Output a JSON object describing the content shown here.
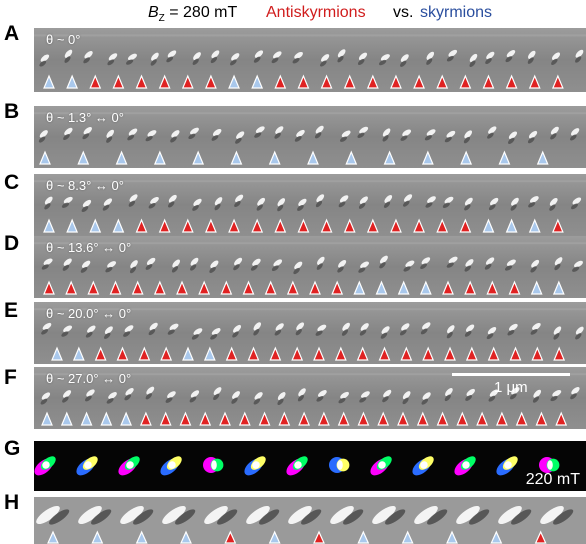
{
  "header": {
    "bz_label": "B",
    "bz_sub": "Z",
    "bz_value": " = 280 mT",
    "antiskyrmions": "Antiskyrmions",
    "vs": "vs.",
    "skyrmions": "skyrmions"
  },
  "colors": {
    "antiskyrmion": "#d01c1c",
    "skyrmion": "#2a4e9e",
    "anti_fill": "#e02222",
    "sky_fill": "#a9c8ec"
  },
  "panels": [
    {
      "label": "A",
      "angle": "θ ~ 0°",
      "markers": [
        "s",
        "s",
        "a",
        "a",
        "a",
        "a",
        "a",
        "a",
        "s",
        "s",
        "a",
        "a",
        "a",
        "a",
        "a",
        "a",
        "a",
        "a",
        "a",
        "a",
        "a",
        "a",
        "a"
      ]
    },
    {
      "label": "B",
      "angle": "θ ~ 1.3° ↔ 0°",
      "markers": [
        "s",
        "s",
        "s",
        "s",
        "s",
        "s",
        "s",
        "s",
        "s",
        "s",
        "s",
        "s",
        "s",
        "s"
      ]
    },
    {
      "label": "C",
      "angle": "θ ~ 8.3° ↔ 0°",
      "markers": [
        "s",
        "s",
        "s",
        "s",
        "a",
        "a",
        "a",
        "a",
        "a",
        "a",
        "a",
        "a",
        "a",
        "a",
        "a",
        "a",
        "a",
        "a",
        "a",
        "s",
        "s",
        "s",
        "a"
      ]
    },
    {
      "label": "D",
      "angle": "θ ~ 13.6° ↔ 0°",
      "markers": [
        "a",
        "a",
        "a",
        "a",
        "a",
        "a",
        "a",
        "a",
        "a",
        "a",
        "a",
        "a",
        "a",
        "a",
        "s",
        "s",
        "s",
        "s",
        "a",
        "a",
        "a",
        "a",
        "s",
        "s"
      ]
    },
    {
      "label": "E",
      "angle": "θ ~ 20.0° ↔ 0°",
      "markers": [
        "s",
        "s",
        "a",
        "a",
        "a",
        "a",
        "s",
        "s",
        "a",
        "a",
        "a",
        "a",
        "a",
        "a",
        "a",
        "a",
        "a",
        "a",
        "a",
        "a",
        "a",
        "a",
        "a",
        "a"
      ]
    },
    {
      "label": "F",
      "angle": "θ ~ 27.0° ↔ 0°",
      "markers": [
        "s",
        "s",
        "s",
        "s",
        "s",
        "a",
        "a",
        "a",
        "a",
        "a",
        "a",
        "a",
        "a",
        "a",
        "a",
        "a",
        "a",
        "a",
        "a",
        "a",
        "a",
        "a",
        "a",
        "a",
        "a",
        "a",
        "a"
      ]
    },
    {
      "label": "G",
      "field": "220 mT"
    },
    {
      "label": "H",
      "markers": [
        "s",
        "s",
        "s",
        "s",
        "a",
        "s",
        "a",
        "s",
        "s",
        "s",
        "s",
        "a"
      ]
    }
  ],
  "scale_bar": {
    "label": "1 μm"
  }
}
